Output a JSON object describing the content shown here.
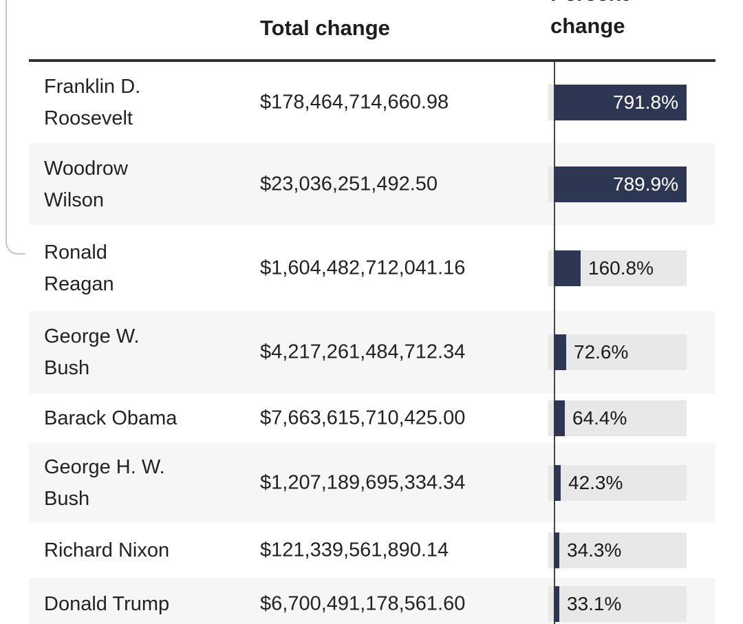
{
  "colors": {
    "bar": "#2d3753",
    "bar_track": "#e8e8e8",
    "row": "#ffffff",
    "row_alt": "#f6f6f6",
    "axis": "#454545",
    "header_rule": "#2f2f2f",
    "text": "#1d1d1d",
    "bar_label_light": "#ffffff"
  },
  "table": {
    "bar_scale_max": 791.8,
    "columns": [
      {
        "label": ""
      },
      {
        "label": "Total change"
      },
      {
        "label": "Percent change",
        "label_text": "Percent\nchange"
      }
    ],
    "rows": [
      {
        "name": "Franklin D. Roosevelt",
        "name_text": "Franklin D.\nRoosevelt",
        "total_change": "$178,464,714,660.98",
        "percent": 791.8,
        "percent_label": "791.8%"
      },
      {
        "name": "Woodrow Wilson",
        "name_text": "Woodrow\nWilson",
        "total_change": "$23,036,251,492.50",
        "percent": 789.9,
        "percent_label": "789.9%"
      },
      {
        "name": "Ronald Reagan",
        "name_text": "Ronald\nReagan",
        "total_change": "$1,604,482,712,041.16",
        "percent": 160.8,
        "percent_label": "160.8%"
      },
      {
        "name": "George W. Bush",
        "name_text": "George W.\nBush",
        "total_change": "$4,217,261,484,712.34",
        "percent": 72.6,
        "percent_label": "72.6%"
      },
      {
        "name": "Barack Obama",
        "name_text": "Barack Obama",
        "total_change": "$7,663,615,710,425.00",
        "percent": 64.4,
        "percent_label": "64.4%"
      },
      {
        "name": "George H. W. Bush",
        "name_text": "George H. W.\nBush",
        "total_change": "$1,207,189,695,334.34",
        "percent": 42.3,
        "percent_label": "42.3%"
      },
      {
        "name": "Richard Nixon",
        "name_text": "Richard Nixon",
        "total_change": "$121,339,561,890.14",
        "percent": 34.3,
        "percent_label": "34.3%"
      },
      {
        "name": "Donald Trump",
        "name_text": "Donald Trump",
        "total_change": "$6,700,491,178,561.60",
        "percent": 33.1,
        "percent_label": "33.1%"
      }
    ]
  },
  "chart_data": {
    "type": "table",
    "title": "",
    "columns": [
      "",
      "Total change",
      "Percent change"
    ],
    "bar_column": "Percent change",
    "bar_axis_max": 791.8,
    "legend_position": "none",
    "rows": [
      {
        "president": "Franklin D. Roosevelt",
        "total_change_usd": "$178,464,714,660.98",
        "percent_change": 791.8
      },
      {
        "president": "Woodrow Wilson",
        "total_change_usd": "$23,036,251,492.50",
        "percent_change": 789.9
      },
      {
        "president": "Ronald Reagan",
        "total_change_usd": "$1,604,482,712,041.16",
        "percent_change": 160.8
      },
      {
        "president": "George W. Bush",
        "total_change_usd": "$4,217,261,484,712.34",
        "percent_change": 72.6
      },
      {
        "president": "Barack Obama",
        "total_change_usd": "$7,663,615,710,425.00",
        "percent_change": 64.4
      },
      {
        "president": "George H. W. Bush",
        "total_change_usd": "$1,207,189,695,334.34",
        "percent_change": 42.3
      },
      {
        "president": "Richard Nixon",
        "total_change_usd": "$121,339,561,890.14",
        "percent_change": 34.3
      },
      {
        "president": "Donald Trump",
        "total_change_usd": "$6,700,491,178,561.60",
        "percent_change": 33.1
      }
    ]
  }
}
